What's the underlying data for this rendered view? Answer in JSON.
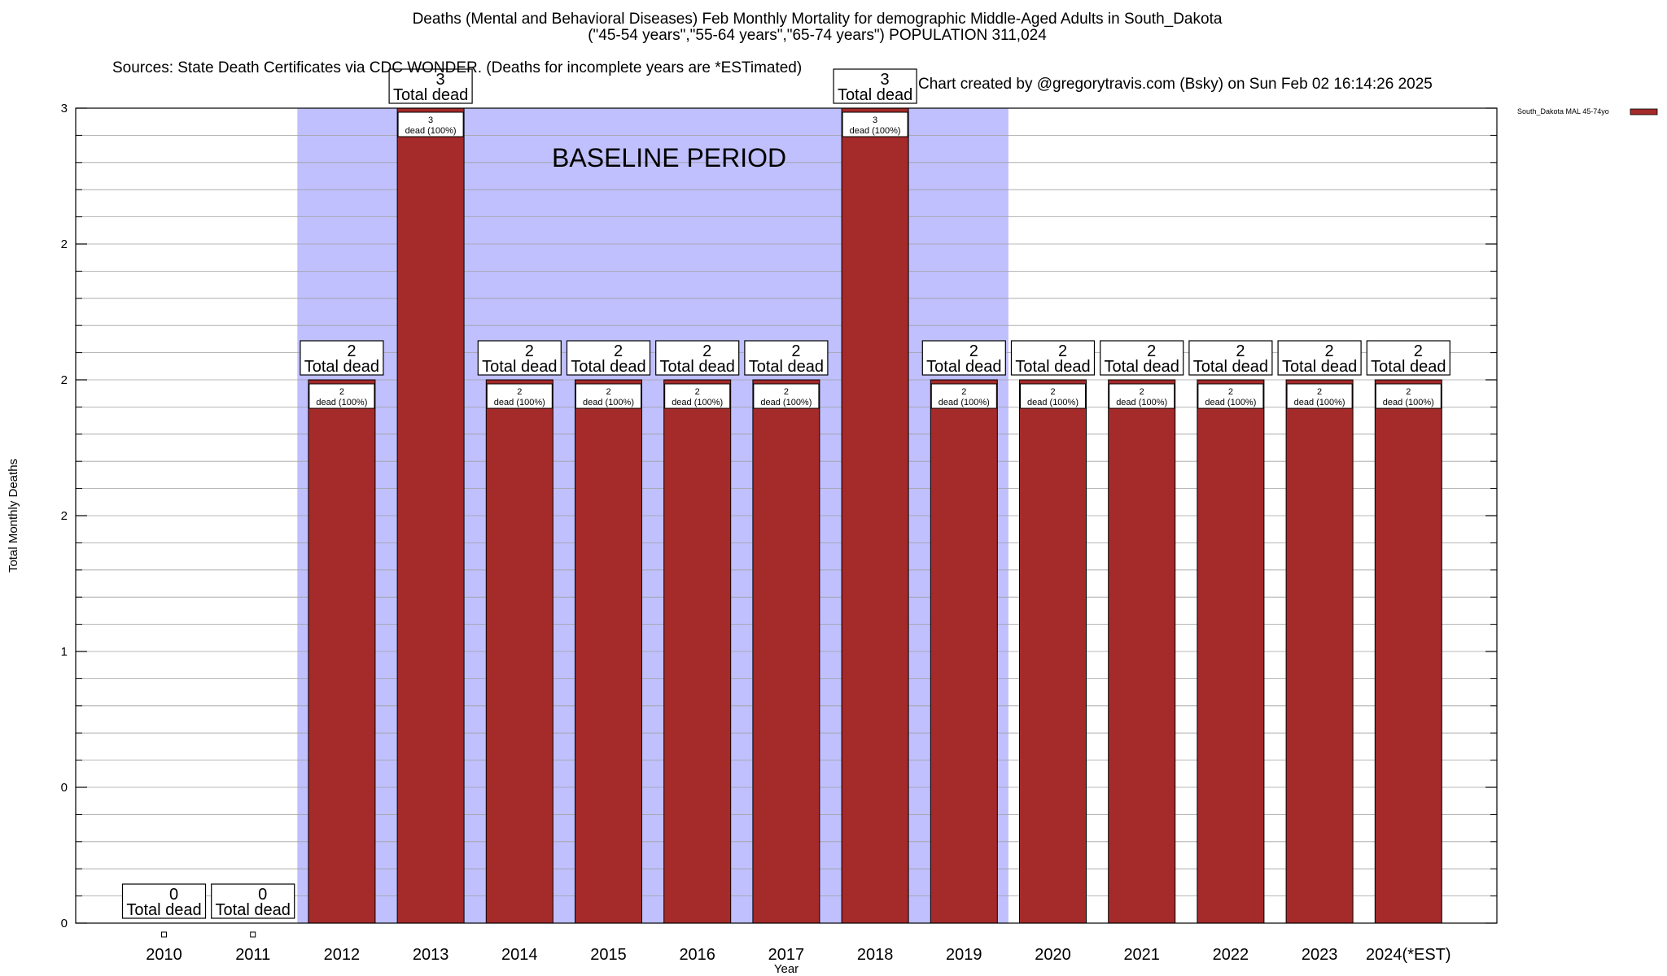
{
  "chart_data": {
    "type": "bar",
    "title": "Deaths (Mental and Behavioral Diseases) Feb Monthly Mortality for demographic Middle-Aged Adults in South_Dakota",
    "subtitle": "(\"45-54 years\",\"55-64 years\",\"65-74 years\") POPULATION 311,024",
    "source": "Sources: State Death Certificates via CDC WONDER. (Deaths for incomplete years are *ESTimated)",
    "credit": "Chart created by @gregorytravis.com (Bsky) on Sun Feb 02 16:14:26 2025",
    "xlabel": "Year",
    "ylabel": "Total Monthly Deaths",
    "ylim": [
      0,
      3
    ],
    "ytick_labels": [
      "0",
      "0",
      "1",
      "2",
      "2",
      "2",
      "3"
    ],
    "grid": true,
    "legend": {
      "position": "top-right",
      "label": "South_Dakota MAL 45-74yo"
    },
    "baseline_label": "BASELINE PERIOD",
    "baseline_range": [
      "2012",
      "2019"
    ],
    "categories": [
      "2010",
      "2011",
      "2012",
      "2013",
      "2014",
      "2015",
      "2016",
      "2017",
      "2018",
      "2019",
      "2020",
      "2021",
      "2022",
      "2023",
      "2024(*EST)"
    ],
    "series": [
      {
        "name": "South_Dakota MAL 45-74yo",
        "values": [
          0,
          0,
          2,
          3,
          2,
          2,
          2,
          2,
          3,
          2,
          2,
          2,
          2,
          2,
          2
        ]
      }
    ],
    "total_label_suffix": "Total dead",
    "inner_label_suffix": "dead (100%)"
  },
  "colors": {
    "bar": "#a52a2a",
    "baseline_band": "#c0c0ff",
    "grid": "#a0a0a0",
    "axis": "#000000"
  }
}
